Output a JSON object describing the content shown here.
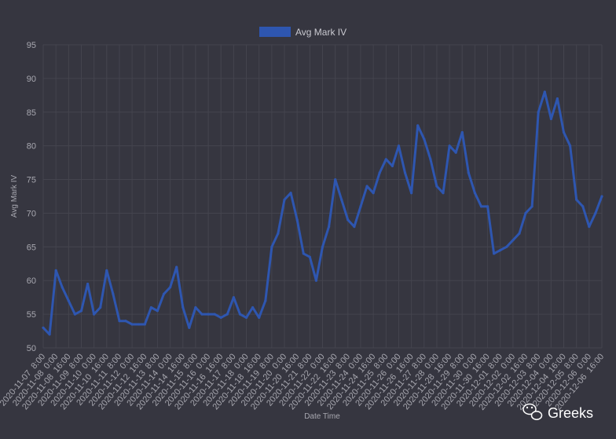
{
  "chart_data": {
    "type": "line",
    "xlabel": "Date Time",
    "ylabel": "Avg Mark IV",
    "ylim": [
      50,
      95
    ],
    "yticks": [
      50,
      55,
      60,
      65,
      70,
      75,
      80,
      85,
      90,
      95
    ],
    "grid": true,
    "legend": "top-center",
    "series": [
      {
        "name": "Avg Mark IV",
        "color": "#2e56b0",
        "x": [
          "2020-11-07 8:00",
          "2020-11-07 16:00",
          "2020-11-08 0:00",
          "2020-11-08 8:00",
          "2020-11-08 16:00",
          "2020-11-09 0:00",
          "2020-11-09 8:00",
          "2020-11-09 16:00",
          "2020-11-10 0:00",
          "2020-11-10 8:00",
          "2020-11-10 16:00",
          "2020-11-11 0:00",
          "2020-11-11 8:00",
          "2020-11-11 16:00",
          "2020-11-12 0:00",
          "2020-11-12 8:00",
          "2020-11-12 16:00",
          "2020-11-13 0:00",
          "2020-11-13 8:00",
          "2020-11-13 16:00",
          "2020-11-14 0:00",
          "2020-11-14 8:00",
          "2020-11-14 16:00",
          "2020-11-15 0:00",
          "2020-11-15 8:00",
          "2020-11-15 16:00",
          "2020-11-16 0:00",
          "2020-11-16 8:00",
          "2020-11-16 16:00",
          "2020-11-17 0:00",
          "2020-11-17 8:00",
          "2020-11-17 16:00",
          "2020-11-18 0:00",
          "2020-11-18 8:00",
          "2020-11-18 16:00",
          "2020-11-19 0:00",
          "2020-11-19 8:00",
          "2020-11-19 16:00",
          "2020-11-20 0:00",
          "2020-11-20 8:00",
          "2020-11-20 16:00",
          "2020-11-21 0:00",
          "2020-11-21 8:00",
          "2020-11-21 16:00",
          "2020-11-22 0:00",
          "2020-11-22 8:00",
          "2020-11-22 16:00",
          "2020-11-23 0:00",
          "2020-11-23 8:00",
          "2020-11-23 16:00",
          "2020-11-24 0:00",
          "2020-11-24 8:00",
          "2020-11-24 16:00",
          "2020-11-25 0:00",
          "2020-11-25 8:00",
          "2020-11-25 16:00",
          "2020-11-26 0:00",
          "2020-11-26 8:00",
          "2020-11-26 16:00",
          "2020-11-27 0:00",
          "2020-11-27 8:00",
          "2020-11-27 16:00",
          "2020-11-28 0:00",
          "2020-11-28 8:00",
          "2020-11-28 16:00",
          "2020-11-29 0:00",
          "2020-11-29 8:00",
          "2020-11-29 16:00",
          "2020-11-30 0:00",
          "2020-11-30 8:00",
          "2020-11-30 16:00",
          "2020-12-01 0:00",
          "2020-12-01 8:00",
          "2020-12-01 16:00",
          "2020-12-02 0:00",
          "2020-12-02 8:00",
          "2020-12-02 16:00",
          "2020-12-03 0:00",
          "2020-12-03 8:00",
          "2020-12-03 16:00",
          "2020-12-04 0:00",
          "2020-12-04 8:00",
          "2020-12-04 16:00",
          "2020-12-05 0:00",
          "2020-12-05 8:00",
          "2020-12-05 16:00",
          "2020-12-06 0:00",
          "2020-12-06 8:00",
          "2020-12-06 16:00"
        ],
        "values": [
          53,
          52,
          61.5,
          59,
          57,
          55,
          55.5,
          59.5,
          55,
          56,
          61.5,
          58,
          54,
          54,
          53.5,
          53.5,
          53.5,
          56,
          55.5,
          58,
          59,
          62,
          56,
          53,
          56,
          55,
          55,
          55,
          54.5,
          55,
          57.5,
          55,
          54.5,
          56,
          54.5,
          57,
          65,
          67,
          72,
          73,
          69,
          64,
          63.5,
          60,
          65,
          68,
          75,
          72,
          69,
          68,
          71,
          74,
          73,
          76,
          78,
          77,
          80,
          76,
          73,
          83,
          81,
          78,
          74,
          73,
          80,
          79,
          82,
          76,
          73,
          71,
          71,
          64,
          64.5,
          65,
          66,
          67,
          70,
          71,
          85,
          88,
          84,
          87,
          82,
          80,
          72,
          71,
          68,
          70,
          72.5
        ]
      }
    ],
    "xtick_labels": [
      "2020-11-07  8:00",
      "2020-11-08  0:00",
      "2020-11-08  16:00",
      "2020-11-09  8:00",
      "2020-11-10  0:00",
      "2020-11-10  16:00",
      "2020-11-11  8:00",
      "2020-11-12  0:00",
      "2020-11-12  16:00",
      "2020-11-13  8:00",
      "2020-11-14  0:00",
      "2020-11-14  16:00",
      "2020-11-15  8:00",
      "2020-11-16  0:00",
      "2020-11-16  16:00",
      "2020-11-17  8:00",
      "2020-11-18  0:00",
      "2020-11-18  16:00",
      "2020-11-19  8:00",
      "2020-11-20  0:00",
      "2020-11-20  16:00",
      "2020-11-21  8:00",
      "2020-11-22  0:00",
      "2020-11-22  16:00",
      "2020-11-23  8:00",
      "2020-11-24  0:00",
      "2020-11-24  16:00",
      "2020-11-25  8:00",
      "2020-11-26  0:00",
      "2020-11-26  16:00",
      "2020-11-27  8:00",
      "2020-11-28  0:00",
      "2020-11-28  16:00",
      "2020-11-29  8:00",
      "2020-11-30  0:00",
      "2020-11-30  16:00",
      "2020-12-01  8:00",
      "2020-12-02  0:00",
      "2020-12-02  16:00",
      "2020-12-03  8:00",
      "2020-12-04  0:00",
      "2020-12-04  16:00",
      "2020-12-05  8:00",
      "2020-12-06  0:00",
      "2020-12-06  16:00"
    ]
  },
  "watermark": {
    "text": "Greeks",
    "icon": "wechat-icon"
  },
  "colors": {
    "background": "#363640",
    "grid": "#44444e",
    "line": "#2e56b0",
    "text": "#a8a8b0"
  }
}
